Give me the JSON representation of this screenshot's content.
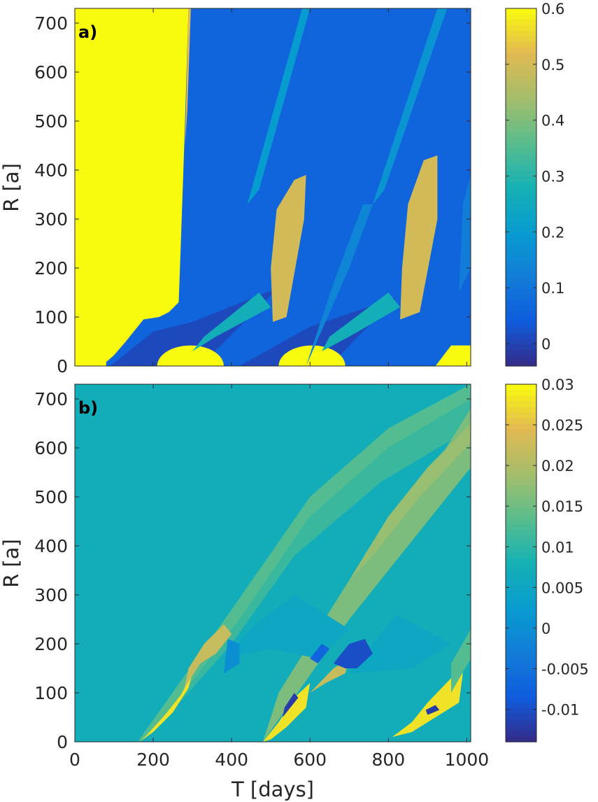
{
  "chart_data": [
    {
      "type": "heatmap",
      "panel_label": "a)",
      "xlabel": "",
      "ylabel": "R [a]",
      "xlim": [
        0,
        1010
      ],
      "ylim": [
        0,
        730
      ],
      "xticks": [],
      "yticks": [
        0,
        100,
        200,
        300,
        400,
        500,
        600,
        700
      ],
      "colorbar": {
        "colormap": "parula",
        "limits": [
          -0.04,
          0.6
        ],
        "ticks": [
          0,
          0.1,
          0.2,
          0.3,
          0.4,
          0.5,
          0.6
        ],
        "tick_labels": [
          "0",
          "0.1",
          "0.2",
          "0.3",
          "0.4",
          "0.5",
          "0.6"
        ]
      },
      "background_value": 0.06,
      "regions": [
        {
          "value": 0.6,
          "kind": "poly",
          "points": [
            [
              0,
              0
            ],
            [
              80,
              0
            ],
            [
              80,
              8
            ],
            [
              100,
              22
            ],
            [
              130,
              50
            ],
            [
              160,
              80
            ],
            [
              175,
              95
            ],
            [
              215,
              100
            ],
            [
              240,
              110
            ],
            [
              265,
              130
            ],
            [
              270,
              240
            ],
            [
              280,
              470
            ],
            [
              290,
              730
            ],
            [
              0,
              730
            ]
          ]
        },
        {
          "value": 0.6,
          "kind": "poly",
          "points": [
            [
              165,
              120
            ],
            [
              170,
              170
            ],
            [
              176,
              170
            ],
            [
              174,
              100
            ]
          ]
        },
        {
          "value": 0.52,
          "kind": "poly",
          "points": [
            [
              290,
              730
            ],
            [
              296,
              730
            ],
            [
              287,
              520
            ],
            [
              281,
              450
            ]
          ]
        },
        {
          "value": 0.01,
          "kind": "poly",
          "points": [
            [
              90,
              0
            ],
            [
              320,
              0
            ],
            [
              520,
              160
            ],
            [
              300,
              90
            ],
            [
              200,
              70
            ]
          ]
        },
        {
          "value": 0.01,
          "kind": "poly",
          "points": [
            [
              420,
              0
            ],
            [
              650,
              0
            ],
            [
              820,
              140
            ],
            [
              600,
              80
            ]
          ]
        },
        {
          "value": 0.6,
          "kind": "ellipse",
          "cx": 295,
          "cy": 0,
          "rx": 85,
          "ry": 42
        },
        {
          "value": 0.6,
          "kind": "ellipse",
          "cx": 605,
          "cy": 0,
          "rx": 85,
          "ry": 42
        },
        {
          "value": 0.6,
          "kind": "poly",
          "points": [
            [
              920,
              0
            ],
            [
              1010,
              0
            ],
            [
              1010,
              42
            ],
            [
              960,
              42
            ]
          ]
        },
        {
          "value": 0.27,
          "kind": "poly",
          "points": [
            [
              300,
              30
            ],
            [
              360,
              60
            ],
            [
              500,
              120
            ],
            [
              470,
              150
            ],
            [
              330,
              60
            ]
          ]
        },
        {
          "value": 0.27,
          "kind": "poly",
          "points": [
            [
              630,
              30
            ],
            [
              700,
              60
            ],
            [
              830,
              120
            ],
            [
              800,
              150
            ],
            [
              650,
              60
            ]
          ]
        },
        {
          "value": 0.5,
          "kind": "poly",
          "points": [
            [
              505,
              90
            ],
            [
              540,
              100
            ],
            [
              585,
              300
            ],
            [
              590,
              390
            ],
            [
              560,
              380
            ],
            [
              515,
              320
            ],
            [
              500,
              200
            ]
          ]
        },
        {
          "value": 0.5,
          "kind": "poly",
          "points": [
            [
              830,
              95
            ],
            [
              880,
              110
            ],
            [
              925,
              300
            ],
            [
              925,
              430
            ],
            [
              890,
              420
            ],
            [
              850,
              330
            ],
            [
              835,
              200
            ]
          ]
        },
        {
          "value": 0.2,
          "kind": "poly",
          "points": [
            [
              440,
              330
            ],
            [
              470,
              360
            ],
            [
              600,
              730
            ],
            [
              580,
              730
            ]
          ]
        },
        {
          "value": 0.18,
          "kind": "poly",
          "points": [
            [
              760,
              330
            ],
            [
              790,
              360
            ],
            [
              950,
              730
            ],
            [
              925,
              730
            ]
          ]
        },
        {
          "value": 0.14,
          "kind": "poly",
          "points": [
            [
              590,
              0
            ],
            [
              700,
              200
            ],
            [
              760,
              330
            ],
            [
              735,
              330
            ],
            [
              660,
              170
            ]
          ]
        },
        {
          "value": 0.12,
          "kind": "poly",
          "points": [
            [
              980,
              150
            ],
            [
              1010,
              200
            ],
            [
              1010,
              390
            ],
            [
              990,
              330
            ]
          ]
        }
      ]
    },
    {
      "type": "heatmap",
      "panel_label": "b)",
      "xlabel": "T [days]",
      "ylabel": "R [a]",
      "xlim": [
        0,
        1010
      ],
      "ylim": [
        0,
        730
      ],
      "xticks": [
        0,
        200,
        400,
        600,
        800,
        1000
      ],
      "yticks": [
        0,
        100,
        200,
        300,
        400,
        500,
        600,
        700
      ],
      "colorbar": {
        "colormap": "parula",
        "limits": [
          -0.014,
          0.03
        ],
        "ticks": [
          -0.01,
          -0.005,
          0,
          0.005,
          0.01,
          0.015,
          0.02,
          0.025,
          0.03
        ],
        "tick_labels": [
          "-0.01",
          "-0.005",
          "0",
          "0.005",
          "0.01",
          "0.015",
          "0.02",
          "0.025",
          "0.03"
        ]
      },
      "background_value": 0.007,
      "regions": [
        {
          "value": 0.013,
          "kind": "poly",
          "points": [
            [
              160,
              0
            ],
            [
              400,
              270
            ],
            [
              600,
              500
            ],
            [
              800,
              640
            ],
            [
              1010,
              730
            ],
            [
              1010,
              700
            ],
            [
              800,
              600
            ],
            [
              600,
              460
            ],
            [
              420,
              250
            ],
            [
              200,
              20
            ]
          ]
        },
        {
          "value": 0.011,
          "kind": "poly",
          "points": [
            [
              200,
              20
            ],
            [
              420,
              250
            ],
            [
              600,
              460
            ],
            [
              800,
              600
            ],
            [
              1010,
              700
            ],
            [
              1010,
              640
            ],
            [
              780,
              530
            ],
            [
              560,
              380
            ],
            [
              400,
              200
            ]
          ]
        },
        {
          "value": 0.016,
          "kind": "poly",
          "points": [
            [
              480,
              0
            ],
            [
              700,
              250
            ],
            [
              880,
              430
            ],
            [
              1010,
              560
            ],
            [
              1010,
              680
            ],
            [
              900,
              540
            ],
            [
              700,
              330
            ],
            [
              520,
              100
            ]
          ]
        },
        {
          "value": 0.018,
          "kind": "poly",
          "points": [
            [
              700,
              330
            ],
            [
              800,
              460
            ],
            [
              900,
              560
            ],
            [
              1010,
              650
            ],
            [
              1010,
              610
            ],
            [
              880,
              500
            ],
            [
              760,
              380
            ]
          ]
        },
        {
          "value": 0.005,
          "kind": "poly",
          "points": [
            [
              380,
              170
            ],
            [
              460,
              240
            ],
            [
              560,
              300
            ],
            [
              700,
              230
            ],
            [
              620,
              170
            ],
            [
              500,
              190
            ]
          ]
        },
        {
          "value": 0.005,
          "kind": "poly",
          "points": [
            [
              700,
              140
            ],
            [
              820,
              260
            ],
            [
              960,
              200
            ],
            [
              860,
              150
            ]
          ]
        },
        {
          "value": 0.028,
          "kind": "poly",
          "points": [
            [
              165,
              0
            ],
            [
              185,
              15
            ],
            [
              230,
              55
            ],
            [
              270,
              95
            ],
            [
              300,
              140
            ],
            [
              290,
              110
            ],
            [
              250,
              60
            ],
            [
              200,
              20
            ]
          ]
        },
        {
          "value": 0.022,
          "kind": "poly",
          "points": [
            [
              280,
              110
            ],
            [
              320,
              160
            ],
            [
              360,
              180
            ],
            [
              400,
              220
            ],
            [
              380,
              240
            ],
            [
              330,
              200
            ],
            [
              290,
              150
            ]
          ]
        },
        {
          "value": 0.0,
          "kind": "poly",
          "points": [
            [
              380,
              140
            ],
            [
              420,
              160
            ],
            [
              420,
              200
            ],
            [
              390,
              210
            ]
          ]
        },
        {
          "value": 0.028,
          "kind": "poly",
          "points": [
            [
              480,
              0
            ],
            [
              520,
              40
            ],
            [
              560,
              90
            ],
            [
              600,
              120
            ],
            [
              590,
              70
            ],
            [
              540,
              30
            ],
            [
              500,
              5
            ]
          ]
        },
        {
          "value": -0.012,
          "kind": "poly",
          "points": [
            [
              530,
              50
            ],
            [
              560,
              80
            ],
            [
              570,
              90
            ],
            [
              560,
              100
            ],
            [
              535,
              70
            ]
          ]
        },
        {
          "value": 0.022,
          "kind": "poly",
          "points": [
            [
              600,
              100
            ],
            [
              660,
              150
            ],
            [
              700,
              170
            ],
            [
              690,
              140
            ],
            [
              640,
              120
            ]
          ]
        },
        {
          "value": -0.01,
          "kind": "poly",
          "points": [
            [
              660,
              160
            ],
            [
              700,
              200
            ],
            [
              740,
              210
            ],
            [
              760,
              180
            ],
            [
              720,
              150
            ],
            [
              690,
              150
            ]
          ]
        },
        {
          "value": -0.007,
          "kind": "poly",
          "points": [
            [
              600,
              170
            ],
            [
              630,
              200
            ],
            [
              650,
              190
            ],
            [
              620,
              160
            ]
          ]
        },
        {
          "value": 0.028,
          "kind": "poly",
          "points": [
            [
              810,
              10
            ],
            [
              860,
              40
            ],
            [
              900,
              80
            ],
            [
              960,
              130
            ],
            [
              990,
              140
            ],
            [
              980,
              80
            ],
            [
              920,
              50
            ],
            [
              860,
              20
            ]
          ]
        },
        {
          "value": -0.012,
          "kind": "poly",
          "points": [
            [
              900,
              55
            ],
            [
              930,
              65
            ],
            [
              920,
              75
            ],
            [
              895,
              65
            ]
          ]
        },
        {
          "value": 0.013,
          "kind": "poly",
          "points": [
            [
              960,
              100
            ],
            [
              1010,
              170
            ],
            [
              1010,
              230
            ],
            [
              960,
              160
            ]
          ]
        }
      ]
    }
  ]
}
